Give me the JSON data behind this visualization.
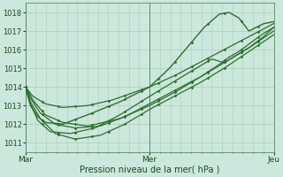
{
  "bg_color": "#cce8dc",
  "grid_color": "#aaccbb",
  "line_color": "#2d6e2d",
  "marker_color": "#2d6e2d",
  "xlabel": "Pression niveau de la mer( hPa )",
  "xtick_labels": [
    "Mar",
    "Mer",
    "Jeu"
  ],
  "xtick_positions": [
    0.0,
    0.5,
    1.0
  ],
  "ylim": [
    1010.5,
    1018.5
  ],
  "yticks": [
    1011,
    1012,
    1013,
    1014,
    1015,
    1016,
    1017,
    1018
  ],
  "series": [
    {
      "x": [
        0.0,
        0.03,
        0.08,
        0.15,
        0.25,
        0.35,
        0.5,
        0.6,
        0.7,
        0.8,
        0.9,
        1.0
      ],
      "y": [
        1014.0,
        1013.5,
        1013.1,
        1012.9,
        1013.0,
        1013.3,
        1014.0,
        1014.6,
        1015.3,
        1016.0,
        1016.7,
        1017.4
      ]
    },
    {
      "x": [
        0.0,
        0.02,
        0.06,
        0.12,
        0.2,
        0.3,
        0.4,
        0.5,
        0.6,
        0.7,
        0.8,
        0.9,
        1.0
      ],
      "y": [
        1014.0,
        1013.2,
        1012.3,
        1011.5,
        1011.2,
        1011.4,
        1012.0,
        1012.8,
        1013.5,
        1014.2,
        1015.0,
        1015.9,
        1016.8
      ]
    },
    {
      "x": [
        0.0,
        0.02,
        0.06,
        0.12,
        0.2,
        0.3,
        0.4,
        0.5,
        0.6,
        0.7,
        0.8,
        0.9,
        1.0
      ],
      "y": [
        1014.0,
        1013.4,
        1012.6,
        1012.0,
        1011.8,
        1011.9,
        1012.4,
        1013.1,
        1013.8,
        1014.5,
        1015.3,
        1016.1,
        1017.0
      ]
    },
    {
      "x": [
        0.0,
        0.02,
        0.05,
        0.1,
        0.18,
        0.28,
        0.38,
        0.5,
        0.6,
        0.7,
        0.75,
        0.8,
        0.85,
        0.9,
        0.95,
        1.0
      ],
      "y": [
        1014.0,
        1013.1,
        1012.2,
        1011.6,
        1011.5,
        1011.8,
        1012.5,
        1013.5,
        1014.3,
        1015.1,
        1015.5,
        1015.3,
        1015.7,
        1016.1,
        1016.6,
        1017.2
      ]
    },
    {
      "x": [
        0.0,
        0.03,
        0.08,
        0.15,
        0.25,
        0.38,
        0.5,
        0.6,
        0.7,
        0.78,
        0.82,
        0.86,
        0.9,
        0.95,
        1.0
      ],
      "y": [
        1014.0,
        1013.3,
        1012.5,
        1012.1,
        1011.9,
        1012.3,
        1013.0,
        1013.7,
        1014.5,
        1015.2,
        1015.6,
        1015.9,
        1016.3,
        1016.8,
        1017.2
      ]
    },
    {
      "x": [
        0.0,
        0.02,
        0.05,
        0.08,
        0.15,
        0.25,
        0.38,
        0.5,
        0.58,
        0.65,
        0.72,
        0.78,
        0.82,
        0.86,
        0.9,
        0.93,
        0.96,
        1.0
      ],
      "y": [
        1014.0,
        1013.0,
        1012.4,
        1012.1,
        1012.0,
        1012.5,
        1013.2,
        1014.0,
        1015.0,
        1016.1,
        1017.2,
        1017.9,
        1018.0,
        1017.7,
        1017.0,
        1017.2,
        1017.4,
        1017.5
      ]
    }
  ]
}
